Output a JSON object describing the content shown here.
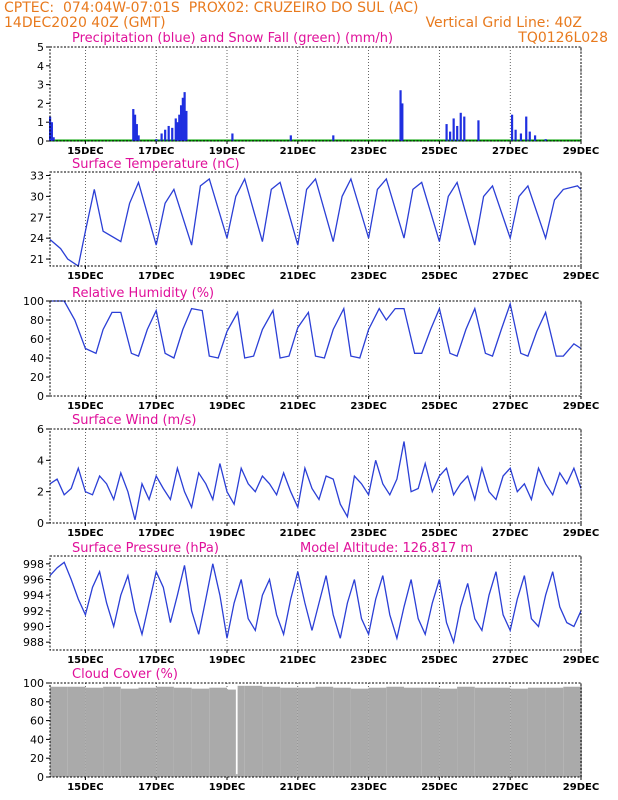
{
  "header": {
    "line1_left": "CPTEC:  074:04W-07:01S  PROX02: CRUZEIRO DO SUL (AC)",
    "line2_left": "14DEC2020 40Z (GMT)",
    "line2_right": "Vertical Grid Line: 40Z",
    "line3_right": "TQ0126L028"
  },
  "colors": {
    "header": "#e87a1e",
    "title": "#e0109a",
    "line": "#2b3fd6",
    "precip": "#1f2fe0",
    "snow": "#00a000",
    "cloud": "#aaaaaa"
  },
  "x_ticks": [
    "15DEC",
    "17DEC",
    "19DEC",
    "21DEC",
    "23DEC",
    "25DEC",
    "27DEC",
    "29DEC"
  ],
  "x_tick_days": [
    1,
    3,
    5,
    7,
    9,
    11,
    13,
    15
  ],
  "x_range_days": [
    0,
    15
  ],
  "panels": {
    "precip": {
      "title": "Precipitation (blue) and Snow Fall (green) (mm/h)",
      "yticks": [
        "0",
        "1",
        "2",
        "3",
        "4",
        "5"
      ]
    },
    "temp": {
      "title": "Surface Temperature (nC)",
      "yticks": [
        "21",
        "24",
        "27",
        "30",
        "33"
      ]
    },
    "rh": {
      "title": "Relative Humidity (%)",
      "yticks": [
        "0",
        "20",
        "40",
        "60",
        "80",
        "100"
      ]
    },
    "wind": {
      "title": "Surface Wind (m/s)",
      "yticks": [
        "0",
        "2",
        "4",
        "6"
      ]
    },
    "pres": {
      "title": "Surface Pressure (hPa)",
      "subtitle": "Model Altitude: 126.817 m",
      "yticks": [
        "988",
        "990",
        "992",
        "994",
        "996",
        "998"
      ]
    },
    "cloud": {
      "title": "Cloud Cover (%)",
      "yticks": [
        "0",
        "20",
        "40",
        "60",
        "80",
        "100"
      ]
    }
  },
  "chart_data": [
    {
      "type": "bar",
      "name": "precipitation",
      "title": "Precipitation (blue) and Snow Fall (green) (mm/h)",
      "ylim": [
        0,
        5
      ],
      "x_days": [
        0.0,
        0.05,
        0.1,
        2.35,
        2.4,
        2.45,
        2.5,
        3.0,
        3.15,
        3.25,
        3.35,
        3.45,
        3.55,
        3.6,
        3.65,
        3.7,
        3.75,
        3.8,
        3.85,
        5.15,
        6.8,
        8.0,
        9.9,
        9.95,
        11.2,
        11.3,
        11.4,
        11.5,
        11.6,
        11.7,
        12.1,
        13.05,
        13.15,
        13.3,
        13.45,
        13.55,
        13.7,
        14.0
      ],
      "values": [
        1.3,
        1.0,
        0.2,
        1.7,
        1.4,
        0.9,
        0.3,
        0.1,
        0.4,
        0.6,
        0.8,
        0.7,
        1.2,
        1.0,
        1.4,
        1.9,
        2.3,
        2.6,
        1.6,
        0.4,
        0.3,
        0.3,
        2.7,
        2.0,
        0.9,
        0.5,
        1.2,
        0.8,
        1.5,
        1.3,
        1.1,
        1.4,
        0.6,
        0.4,
        1.3,
        0.5,
        0.3,
        0.1
      ],
      "snow_values": 0
    },
    {
      "type": "line",
      "name": "surface-temperature",
      "title": "Surface Temperature (nC)",
      "ylim": [
        20,
        33.5
      ],
      "x_days": [
        0.0,
        0.3,
        0.5,
        0.8,
        1.0,
        1.25,
        1.5,
        2.0,
        2.25,
        2.5,
        3.0,
        3.25,
        3.5,
        4.0,
        4.25,
        4.5,
        5.0,
        5.25,
        5.5,
        6.0,
        6.25,
        6.5,
        7.0,
        7.25,
        7.5,
        8.0,
        8.25,
        8.5,
        9.0,
        9.25,
        9.5,
        10.0,
        10.25,
        10.5,
        11.0,
        11.25,
        11.5,
        12.0,
        12.25,
        12.5,
        13.0,
        13.25,
        13.5,
        14.0,
        14.25,
        14.5,
        14.9,
        15.0
      ],
      "values": [
        23.8,
        22.5,
        21.0,
        20.0,
        25.0,
        31.0,
        25.0,
        23.5,
        29.0,
        32.0,
        23.0,
        29.0,
        31.0,
        23.0,
        31.5,
        32.5,
        24.0,
        30.0,
        32.5,
        23.5,
        31.0,
        32.0,
        23.0,
        31.0,
        32.5,
        23.5,
        30.0,
        32.5,
        24.0,
        31.0,
        32.5,
        24.0,
        31.0,
        32.0,
        23.5,
        30.0,
        32.0,
        23.0,
        30.0,
        31.5,
        24.0,
        30.0,
        31.5,
        24.0,
        29.5,
        31.0,
        31.5,
        31.0
      ]
    },
    {
      "type": "line",
      "name": "relative-humidity",
      "title": "Relative Humidity (%)",
      "ylim": [
        0,
        100
      ],
      "x_days": [
        0.0,
        0.4,
        0.7,
        1.0,
        1.3,
        1.5,
        1.75,
        2.0,
        2.3,
        2.5,
        2.75,
        3.0,
        3.25,
        3.5,
        3.75,
        4.0,
        4.3,
        4.5,
        4.75,
        5.0,
        5.3,
        5.5,
        5.75,
        6.0,
        6.3,
        6.5,
        6.75,
        7.0,
        7.3,
        7.5,
        7.75,
        8.0,
        8.3,
        8.5,
        8.75,
        9.0,
        9.3,
        9.5,
        9.75,
        10.0,
        10.3,
        10.5,
        10.75,
        11.0,
        11.3,
        11.5,
        11.75,
        12.0,
        12.3,
        12.5,
        12.75,
        13.0,
        13.3,
        13.5,
        13.75,
        14.0,
        14.3,
        14.5,
        14.8,
        15.0
      ],
      "values": [
        100,
        100,
        80,
        50,
        45,
        70,
        88,
        88,
        45,
        42,
        70,
        90,
        45,
        40,
        70,
        92,
        90,
        42,
        40,
        68,
        88,
        40,
        42,
        70,
        90,
        40,
        42,
        72,
        88,
        42,
        40,
        70,
        92,
        42,
        40,
        70,
        92,
        80,
        92,
        92,
        45,
        45,
        70,
        92,
        45,
        42,
        70,
        92,
        45,
        42,
        70,
        97,
        45,
        42,
        68,
        88,
        42,
        42,
        55,
        50
      ]
    },
    {
      "type": "line",
      "name": "surface-wind-speed",
      "title": "Surface Wind (m/s)",
      "ylim": [
        0,
        6
      ],
      "x_days": [
        0.0,
        0.2,
        0.4,
        0.6,
        0.8,
        1.0,
        1.2,
        1.4,
        1.6,
        1.8,
        2.0,
        2.2,
        2.4,
        2.6,
        2.8,
        3.0,
        3.2,
        3.4,
        3.6,
        3.8,
        4.0,
        4.2,
        4.4,
        4.6,
        4.8,
        5.0,
        5.2,
        5.4,
        5.6,
        5.8,
        6.0,
        6.2,
        6.4,
        6.6,
        6.8,
        7.0,
        7.2,
        7.4,
        7.6,
        7.8,
        8.0,
        8.2,
        8.4,
        8.6,
        8.8,
        9.0,
        9.2,
        9.4,
        9.6,
        9.8,
        10.0,
        10.2,
        10.4,
        10.6,
        10.8,
        11.0,
        11.2,
        11.4,
        11.6,
        11.8,
        12.0,
        12.2,
        12.4,
        12.6,
        12.8,
        13.0,
        13.2,
        13.4,
        13.6,
        13.8,
        14.0,
        14.2,
        14.4,
        14.6,
        14.8,
        15.0
      ],
      "values": [
        2.5,
        2.8,
        1.8,
        2.2,
        3.5,
        2.0,
        1.8,
        3.0,
        2.5,
        1.5,
        3.2,
        2.0,
        0.2,
        2.5,
        1.5,
        3.0,
        2.2,
        1.5,
        3.5,
        2.0,
        1.0,
        3.2,
        2.5,
        1.5,
        3.8,
        2.0,
        1.2,
        3.5,
        2.5,
        2.0,
        3.0,
        2.5,
        1.8,
        3.2,
        2.0,
        1.0,
        3.5,
        2.2,
        1.5,
        3.0,
        2.8,
        1.2,
        0.4,
        3.0,
        2.5,
        1.8,
        4.0,
        2.5,
        1.8,
        2.8,
        5.2,
        2.0,
        2.2,
        3.8,
        2.0,
        3.0,
        3.5,
        1.8,
        2.5,
        3.0,
        1.5,
        3.5,
        2.0,
        1.5,
        3.0,
        3.5,
        2.0,
        2.5,
        1.5,
        3.5,
        2.5,
        1.8,
        3.2,
        2.5,
        3.5,
        2.2
      ]
    },
    {
      "type": "line",
      "name": "surface-pressure",
      "title": "Surface Pressure (hPa)",
      "ylim": [
        987,
        999
      ],
      "x_days": [
        0.0,
        0.2,
        0.4,
        0.6,
        0.8,
        1.0,
        1.2,
        1.4,
        1.6,
        1.8,
        2.0,
        2.2,
        2.4,
        2.6,
        2.8,
        3.0,
        3.2,
        3.4,
        3.6,
        3.8,
        4.0,
        4.2,
        4.4,
        4.6,
        4.8,
        5.0,
        5.2,
        5.4,
        5.6,
        5.8,
        6.0,
        6.2,
        6.4,
        6.6,
        6.8,
        7.0,
        7.2,
        7.4,
        7.6,
        7.8,
        8.0,
        8.2,
        8.4,
        8.6,
        8.8,
        9.0,
        9.2,
        9.4,
        9.6,
        9.8,
        10.0,
        10.2,
        10.4,
        10.6,
        10.8,
        11.0,
        11.2,
        11.4,
        11.6,
        11.8,
        12.0,
        12.2,
        12.4,
        12.6,
        12.8,
        13.0,
        13.2,
        13.4,
        13.6,
        13.8,
        14.0,
        14.2,
        14.4,
        14.6,
        14.8,
        15.0
      ],
      "values": [
        996.5,
        997.5,
        998.2,
        996.0,
        993.5,
        991.5,
        995.0,
        997.0,
        993.0,
        990.0,
        994.0,
        996.5,
        992.0,
        989.0,
        993.0,
        997.0,
        995.0,
        990.5,
        994.0,
        997.8,
        992.0,
        989.0,
        993.5,
        998.0,
        994.0,
        988.5,
        993.0,
        996.0,
        991.0,
        989.5,
        994.0,
        996.0,
        991.5,
        989.0,
        993.5,
        997.0,
        993.0,
        989.5,
        993.0,
        996.5,
        991.5,
        988.5,
        993.0,
        996.0,
        991.0,
        989.0,
        993.5,
        996.5,
        991.5,
        988.5,
        992.5,
        996.0,
        991.0,
        989.0,
        993.0,
        996.0,
        990.5,
        988.0,
        992.5,
        995.5,
        991.0,
        989.5,
        994.0,
        997.0,
        991.5,
        989.5,
        993.5,
        996.5,
        991.0,
        990.0,
        994.0,
        997.0,
        992.5,
        990.5,
        990.0,
        992.0
      ]
    },
    {
      "type": "bar",
      "name": "cloud-cover",
      "title": "Cloud Cover (%)",
      "ylim": [
        0,
        100
      ],
      "x_days": [
        0.0,
        0.5,
        1.0,
        1.5,
        2.0,
        2.5,
        3.0,
        3.5,
        4.0,
        4.5,
        5.0,
        5.25,
        5.3,
        5.5,
        6.0,
        6.5,
        7.0,
        7.5,
        8.0,
        8.5,
        9.0,
        9.5,
        10.0,
        10.5,
        11.0,
        11.5,
        12.0,
        12.5,
        13.0,
        13.5,
        14.0,
        14.5,
        15.0
      ],
      "values": [
        96,
        96,
        95,
        96,
        94,
        95,
        96,
        95,
        94,
        95,
        93,
        3,
        97,
        97,
        96,
        95,
        95,
        96,
        95,
        94,
        95,
        96,
        95,
        95,
        94,
        96,
        95,
        95,
        94,
        95,
        95,
        96,
        96
      ]
    }
  ]
}
